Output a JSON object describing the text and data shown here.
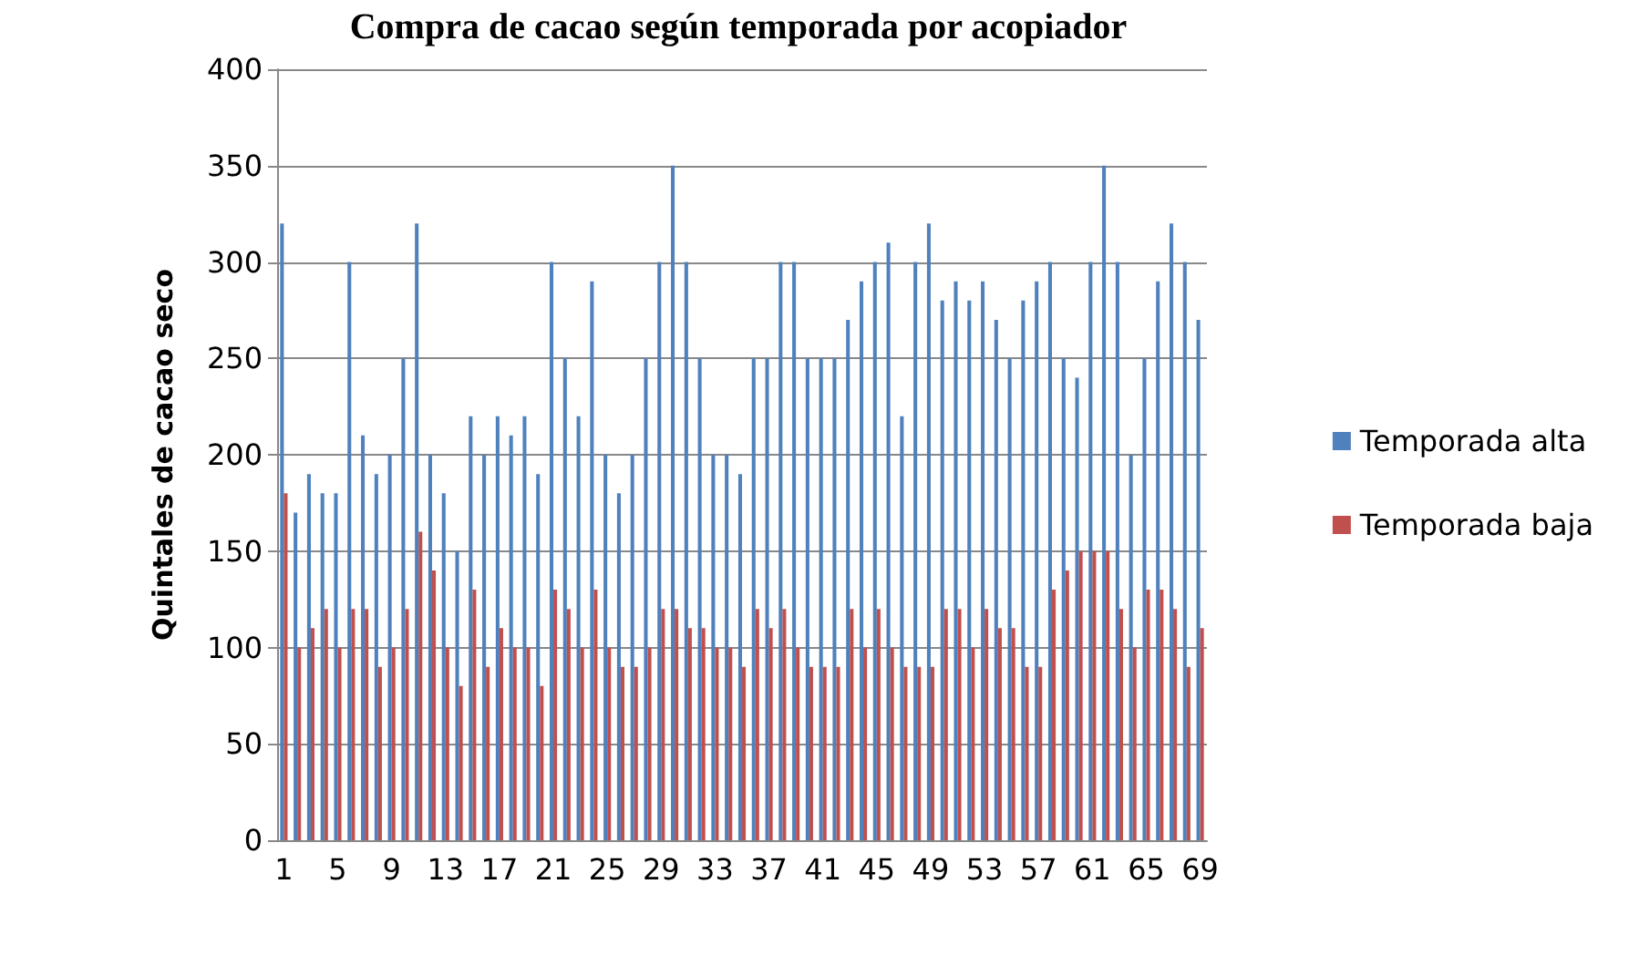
{
  "chart_data": {
    "type": "bar",
    "title": "Compra de cacao según temporada por acopiador",
    "ylabel": "Quintales de cacao seco",
    "categories": [
      "1",
      null,
      null,
      null,
      "5",
      null,
      null,
      null,
      "9",
      null,
      null,
      null,
      "13",
      null,
      null,
      null,
      "17",
      null,
      null,
      null,
      "21",
      null,
      null,
      null,
      "25",
      null,
      null,
      null,
      "29",
      null,
      null,
      null,
      "33",
      null,
      null,
      null,
      "37",
      null,
      null,
      null,
      "41",
      null,
      null,
      null,
      "45",
      null,
      null,
      null,
      "49",
      null,
      null,
      null,
      "53",
      null,
      null,
      null,
      "57",
      null,
      null,
      null,
      "61",
      null,
      null,
      null,
      "65",
      null,
      null,
      null,
      "69"
    ],
    "series": [
      {
        "name": "Temporada alta",
        "color": "#4f81bd",
        "values": [
          320,
          170,
          190,
          180,
          180,
          300,
          210,
          190,
          200,
          250,
          320,
          200,
          180,
          150,
          220,
          200,
          220,
          210,
          220,
          190,
          300,
          250,
          220,
          290,
          200,
          180,
          200,
          250,
          300,
          350,
          300,
          250,
          200,
          200,
          190,
          250,
          250,
          300,
          300,
          250,
          250,
          250,
          270,
          290,
          300,
          310,
          220,
          300,
          320,
          280,
          290,
          280,
          290,
          270,
          250,
          280,
          290,
          300,
          250,
          240,
          300,
          350,
          300,
          200,
          250,
          290,
          320,
          300,
          270
        ]
      },
      {
        "name": "Temporada baja",
        "color": "#c0504d",
        "values": [
          180,
          100,
          110,
          120,
          100,
          120,
          120,
          90,
          100,
          120,
          160,
          140,
          100,
          80,
          130,
          90,
          110,
          100,
          100,
          80,
          130,
          120,
          100,
          130,
          100,
          90,
          90,
          100,
          120,
          120,
          110,
          110,
          100,
          100,
          90,
          120,
          110,
          120,
          100,
          90,
          90,
          90,
          120,
          100,
          120,
          100,
          90,
          90,
          90,
          120,
          120,
          100,
          120,
          110,
          110,
          90,
          90,
          130,
          140,
          150,
          150,
          150,
          120,
          100,
          130,
          130,
          120,
          90,
          110
        ]
      }
    ],
    "ylim": [
      0,
      400
    ],
    "yticks": [
      0,
      50,
      100,
      150,
      200,
      250,
      300,
      350,
      400
    ],
    "grid": "y",
    "legend": "right"
  }
}
